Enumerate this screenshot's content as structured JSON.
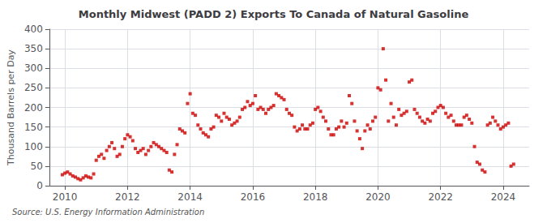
{
  "chart_data": {
    "type": "scatter",
    "title": "Monthly Midwest (PADD 2) Exports To Canada of Natural Gasoline",
    "ylabel": "Thousand Barrels per Day",
    "source": "Source: U.S. Energy Information Administration",
    "color": "#cc0000",
    "marker": "square",
    "grid": true,
    "xlim": [
      2009.5,
      2024.83
    ],
    "xticks": [
      2010,
      2012,
      2014,
      2016,
      2018,
      2020,
      2022,
      2024
    ],
    "ylim": [
      0,
      400
    ],
    "yticks": [
      0,
      50,
      100,
      150,
      200,
      250,
      300,
      350,
      400
    ],
    "x": [
      2009.917,
      2010.0,
      2010.083,
      2010.167,
      2010.25,
      2010.333,
      2010.417,
      2010.5,
      2010.583,
      2010.667,
      2010.75,
      2010.833,
      2010.917,
      2011.0,
      2011.083,
      2011.167,
      2011.25,
      2011.333,
      2011.417,
      2011.5,
      2011.583,
      2011.667,
      2011.75,
      2011.833,
      2011.917,
      2012.0,
      2012.083,
      2012.167,
      2012.25,
      2012.333,
      2012.417,
      2012.5,
      2012.583,
      2012.667,
      2012.75,
      2012.833,
      2012.917,
      2013.0,
      2013.083,
      2013.167,
      2013.25,
      2013.333,
      2013.417,
      2013.5,
      2013.583,
      2013.667,
      2013.75,
      2013.833,
      2013.917,
      2014.0,
      2014.083,
      2014.167,
      2014.25,
      2014.333,
      2014.417,
      2014.5,
      2014.583,
      2014.667,
      2014.75,
      2014.833,
      2014.917,
      2015.0,
      2015.083,
      2015.167,
      2015.25,
      2015.333,
      2015.417,
      2015.5,
      2015.583,
      2015.667,
      2015.75,
      2015.833,
      2015.917,
      2016.0,
      2016.083,
      2016.167,
      2016.25,
      2016.333,
      2016.417,
      2016.5,
      2016.583,
      2016.667,
      2016.75,
      2016.833,
      2016.917,
      2017.0,
      2017.083,
      2017.167,
      2017.25,
      2017.333,
      2017.417,
      2017.5,
      2017.583,
      2017.667,
      2017.75,
      2017.833,
      2017.917,
      2018.0,
      2018.083,
      2018.167,
      2018.25,
      2018.333,
      2018.417,
      2018.5,
      2018.583,
      2018.667,
      2018.75,
      2018.833,
      2018.917,
      2019.0,
      2019.083,
      2019.167,
      2019.25,
      2019.333,
      2019.417,
      2019.5,
      2019.583,
      2019.667,
      2019.75,
      2019.833,
      2019.917,
      2020.0,
      2020.083,
      2020.167,
      2020.25,
      2020.333,
      2020.417,
      2020.5,
      2020.583,
      2020.667,
      2020.75,
      2020.833,
      2020.917,
      2021.0,
      2021.083,
      2021.167,
      2021.25,
      2021.333,
      2021.417,
      2021.5,
      2021.583,
      2021.667,
      2021.75,
      2021.833,
      2021.917,
      2022.0,
      2022.083,
      2022.167,
      2022.25,
      2022.333,
      2022.417,
      2022.5,
      2022.583,
      2022.667,
      2022.75,
      2022.833,
      2022.917,
      2023.0,
      2023.083,
      2023.167,
      2023.25,
      2023.333,
      2023.417,
      2023.5,
      2023.583,
      2023.667,
      2023.75,
      2023.833,
      2023.917,
      2024.0,
      2024.083,
      2024.167,
      2024.25,
      2024.333
    ],
    "values": [
      28,
      32,
      35,
      30,
      25,
      22,
      18,
      15,
      20,
      25,
      22,
      20,
      30,
      65,
      75,
      80,
      70,
      90,
      100,
      110,
      95,
      75,
      80,
      100,
      120,
      130,
      125,
      115,
      95,
      85,
      90,
      95,
      80,
      90,
      100,
      110,
      105,
      100,
      95,
      90,
      85,
      40,
      35,
      80,
      105,
      145,
      140,
      135,
      210,
      235,
      185,
      180,
      155,
      145,
      135,
      130,
      125,
      145,
      150,
      180,
      175,
      165,
      185,
      175,
      170,
      155,
      160,
      165,
      175,
      195,
      200,
      215,
      205,
      210,
      230,
      195,
      200,
      195,
      185,
      195,
      200,
      205,
      235,
      230,
      225,
      220,
      195,
      185,
      180,
      150,
      140,
      145,
      155,
      145,
      145,
      155,
      160,
      195,
      200,
      190,
      175,
      165,
      145,
      130,
      130,
      145,
      150,
      165,
      150,
      160,
      230,
      210,
      165,
      140,
      120,
      95,
      140,
      155,
      145,
      165,
      175,
      250,
      245,
      350,
      270,
      165,
      210,
      175,
      155,
      195,
      180,
      185,
      190,
      265,
      270,
      195,
      185,
      175,
      165,
      160,
      170,
      165,
      185,
      190,
      200,
      205,
      200,
      185,
      175,
      180,
      165,
      155,
      155,
      155,
      175,
      180,
      170,
      160,
      100,
      60,
      55,
      40,
      35,
      155,
      160,
      175,
      165,
      155,
      145,
      150,
      155,
      160,
      50,
      55
    ]
  }
}
